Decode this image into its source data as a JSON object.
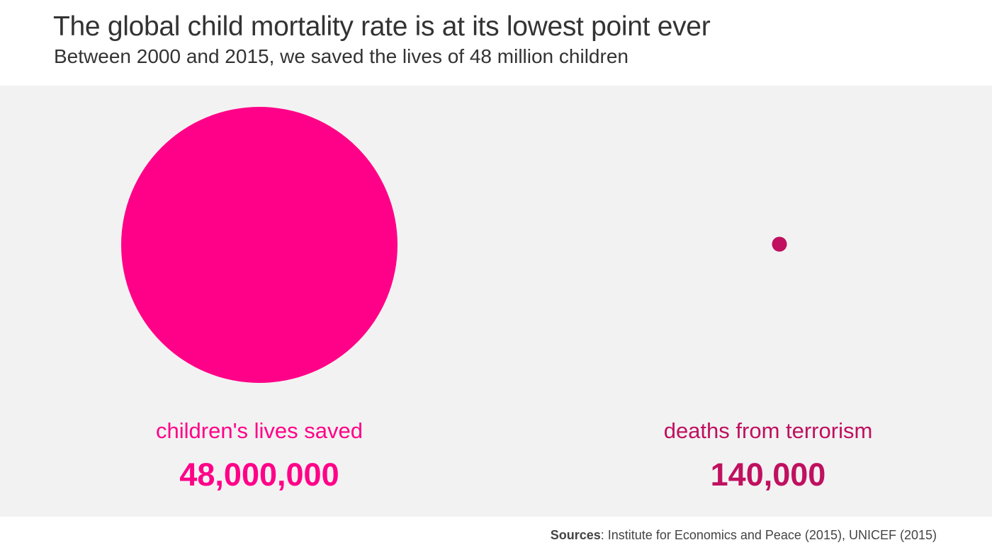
{
  "header": {
    "title": "The global child mortality rate is at its lowest point ever",
    "subtitle": "Between 2000 and 2015, we saved the lives of 48 million children"
  },
  "footer": {
    "sources_label": "Sources",
    "sources_text": ": Institute for Economics and Peace (2015), UNICEF (2015)"
  },
  "colors": {
    "background": "#ffffff",
    "panel": "#f2f2f2",
    "children_pink": "#ff0088",
    "terrorism_magenta": "#c0105f",
    "text": "#333333"
  },
  "chart_data": {
    "type": "bubble",
    "title": "The global child mortality rate is at its lowest point ever",
    "subtitle": "Between 2000 and 2015, we saved the lives of 48 million children",
    "series": [
      {
        "name": "children's lives saved",
        "value": 48000000,
        "value_label": "48,000,000",
        "color": "#ff0088"
      },
      {
        "name": "deaths from terrorism",
        "value": 140000,
        "value_label": "140,000",
        "color": "#c0105f"
      }
    ]
  }
}
